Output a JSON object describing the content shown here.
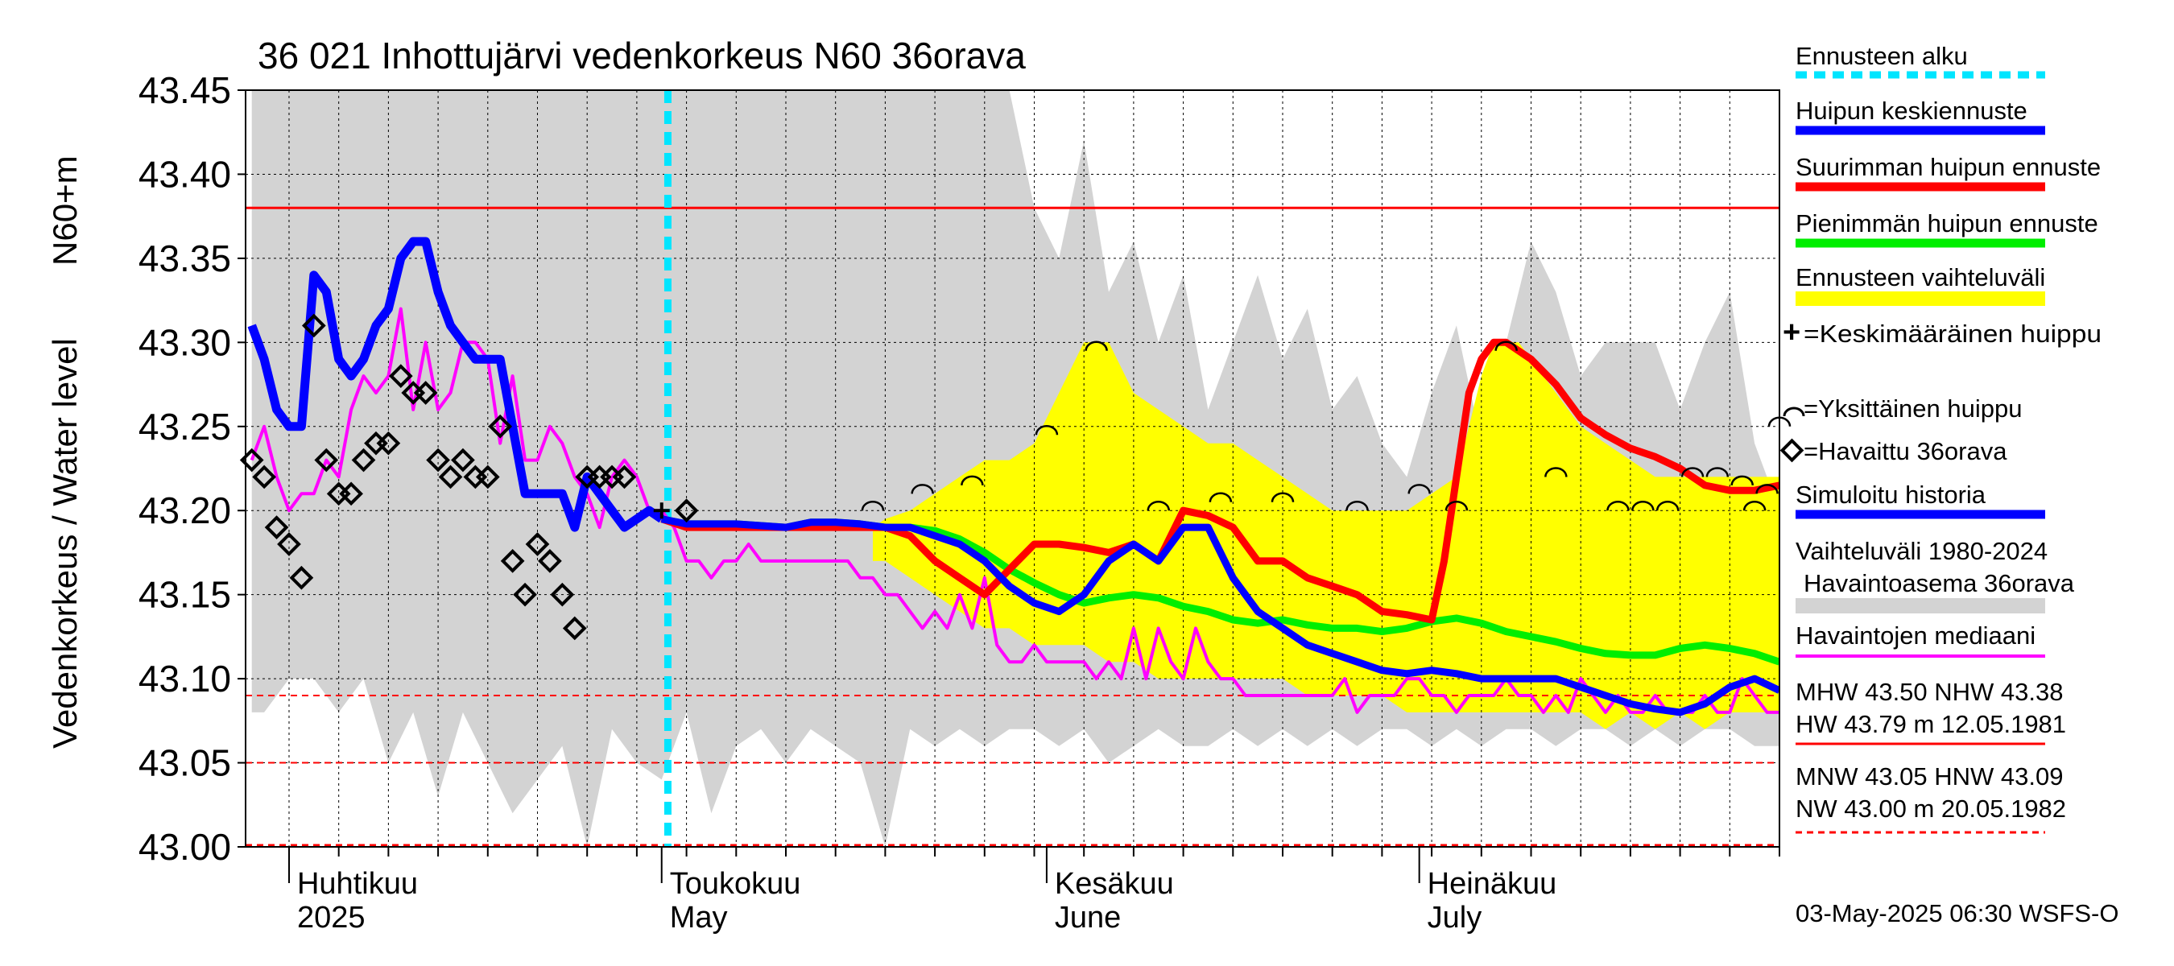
{
  "chart_data": {
    "type": "line",
    "title": "36 021 Inhottujärvi vedenkorkeus N60 36orava",
    "ylabel_top": "N60+m",
    "ylabel": "Vedenkorkeus / Water level",
    "ylim": [
      43.0,
      43.45
    ],
    "yticks": [
      "43.45",
      "43.40",
      "43.35",
      "43.30",
      "43.25",
      "43.20",
      "43.15",
      "43.10",
      "43.05",
      "43.00"
    ],
    "xlim": [
      -3.5,
      120
    ],
    "x_unit": "days from 1 April 2025",
    "month_labels": [
      {
        "fi": "Huhtikuu",
        "en": "2025",
        "day": 0
      },
      {
        "fi": "Toukokuu",
        "en": "May",
        "day": 30
      },
      {
        "fi": "Kesäkuu",
        "en": "June",
        "day": 61
      },
      {
        "fi": "Heinäkuu",
        "en": "July",
        "day": 91
      }
    ],
    "forecast_start_day": 30.5,
    "reference_lines": {
      "NHW": 43.38,
      "HNW": 43.09,
      "MNW": 43.05,
      "NW": 43.0
    },
    "legend": {
      "forecast_start": "Ennusteen alku",
      "peak_mean": "Huipun keskiennuste",
      "peak_max": "Suurimman huipun ennuste",
      "peak_min": "Pienimmän huipun ennuste",
      "forecast_range": "Ennusteen vaihteluväli",
      "mean_peak": "=Keskimääräinen huippu",
      "single_peak": "=Yksittäinen huippu",
      "observed": "=Havaittu 36orava",
      "simulated": "Simuloitu historia",
      "range_label_1": "Vaihteluväli 1980-2024",
      "range_label_2": "Havaintoasema 36orava",
      "median": "Havaintojen mediaani",
      "stats_1a": "MHW  43.50 NHW  43.38",
      "stats_1b": "HW  43.79 m 12.05.1981",
      "stats_2a": "MNW  43.05 HNW  43.09",
      "stats_2b": "NW  43.00 m 20.05.1982"
    },
    "footer": "03-May-2025 06:30 WSFS-O",
    "colors": {
      "history_range": "#d3d3d3",
      "forecast_range": "#ffff00",
      "peak_mean": "#0000ff",
      "peak_max": "#ff0000",
      "peak_min": "#00ee00",
      "median": "#ff00ff",
      "forecast_start": "#00e5ff",
      "reference": "#ff0000"
    },
    "series": {
      "history_range": {
        "x": [
          -3,
          -2,
          -1,
          0,
          2,
          4,
          6,
          8,
          10,
          12,
          14,
          16,
          18,
          20,
          22,
          24,
          26,
          28,
          30,
          32,
          34,
          36,
          38,
          40,
          42,
          44,
          46,
          48,
          50,
          52,
          54,
          56,
          58,
          60,
          62,
          64,
          66,
          68,
          70,
          72,
          74,
          76,
          78,
          80,
          82,
          84,
          86,
          88,
          90,
          92,
          94,
          96,
          98,
          100,
          102,
          104,
          106,
          108,
          110,
          112,
          114,
          116,
          118,
          120
        ],
        "high": [
          43.45,
          43.45,
          43.45,
          43.45,
          43.45,
          43.45,
          43.45,
          43.45,
          43.45,
          43.45,
          43.45,
          43.45,
          43.45,
          43.45,
          43.45,
          43.45,
          43.45,
          43.45,
          43.45,
          43.45,
          43.45,
          43.45,
          43.45,
          43.45,
          43.45,
          43.45,
          43.45,
          43.45,
          43.45,
          43.45,
          43.45,
          43.45,
          43.45,
          43.38,
          43.35,
          43.42,
          43.33,
          43.36,
          43.3,
          43.34,
          43.26,
          43.3,
          43.34,
          43.29,
          43.32,
          43.26,
          43.28,
          43.24,
          43.22,
          43.27,
          43.31,
          43.24,
          43.3,
          43.36,
          43.33,
          43.28,
          43.3,
          43.3,
          43.3,
          43.26,
          43.3,
          43.33,
          43.24,
          43.2
        ],
        "low": [
          43.08,
          43.08,
          43.09,
          43.1,
          43.1,
          43.08,
          43.1,
          43.05,
          43.08,
          43.03,
          43.08,
          43.05,
          43.02,
          43.04,
          43.06,
          43.0,
          43.07,
          43.05,
          43.04,
          43.08,
          43.02,
          43.06,
          43.07,
          43.05,
          43.07,
          43.06,
          43.05,
          43.0,
          43.07,
          43.06,
          43.07,
          43.06,
          43.07,
          43.07,
          43.06,
          43.07,
          43.05,
          43.06,
          43.07,
          43.06,
          43.06,
          43.07,
          43.06,
          43.07,
          43.06,
          43.07,
          43.06,
          43.07,
          43.07,
          43.06,
          43.07,
          43.06,
          43.07,
          43.07,
          43.06,
          43.07,
          43.07,
          43.06,
          43.07,
          43.06,
          43.07,
          43.07,
          43.06,
          43.06
        ]
      },
      "forecast_range": {
        "x": [
          47,
          48,
          50,
          52,
          54,
          56,
          58,
          60,
          62,
          64,
          66,
          68,
          70,
          72,
          74,
          76,
          78,
          80,
          82,
          84,
          86,
          88,
          90,
          92,
          94,
          95,
          96,
          97,
          98,
          99,
          100,
          102,
          104,
          106,
          108,
          110,
          112,
          114,
          116,
          118,
          120
        ],
        "high": [
          43.19,
          43.195,
          43.2,
          43.21,
          43.22,
          43.23,
          43.23,
          43.24,
          43.27,
          43.3,
          43.3,
          43.27,
          43.26,
          43.25,
          43.24,
          43.24,
          43.23,
          43.22,
          43.21,
          43.2,
          43.2,
          43.2,
          43.2,
          43.21,
          43.22,
          43.25,
          43.28,
          43.3,
          43.3,
          43.3,
          43.29,
          43.27,
          43.25,
          43.24,
          43.23,
          43.22,
          43.22,
          43.22,
          43.22,
          43.22,
          43.22
        ],
        "low": [
          43.17,
          43.17,
          43.16,
          43.15,
          43.14,
          43.13,
          43.13,
          43.12,
          43.12,
          43.12,
          43.11,
          43.11,
          43.1,
          43.1,
          43.1,
          43.1,
          43.1,
          43.1,
          43.09,
          43.09,
          43.09,
          43.09,
          43.08,
          43.08,
          43.08,
          43.08,
          43.08,
          43.08,
          43.08,
          43.08,
          43.08,
          43.08,
          43.08,
          43.07,
          43.08,
          43.07,
          43.08,
          43.07,
          43.08,
          43.08,
          43.08
        ]
      },
      "simulated": {
        "x": [
          -3,
          -2,
          -1,
          0,
          1,
          2,
          3,
          4,
          5,
          6,
          7,
          8,
          9,
          10,
          11,
          12,
          13,
          14,
          15,
          16,
          17,
          18,
          19,
          20,
          21,
          22,
          23,
          24,
          25,
          26,
          27,
          28,
          29,
          30
        ],
        "values": [
          43.31,
          43.29,
          43.26,
          43.25,
          43.25,
          43.34,
          43.33,
          43.29,
          43.28,
          43.29,
          43.31,
          43.32,
          43.35,
          43.36,
          43.36,
          43.33,
          43.31,
          43.3,
          43.29,
          43.29,
          43.29,
          43.25,
          43.21,
          43.21,
          43.21,
          43.21,
          43.19,
          43.22,
          43.21,
          43.2,
          43.19,
          43.195,
          43.2,
          43.195
        ]
      },
      "peak_mean": {
        "x": [
          30,
          32,
          34,
          36,
          38,
          40,
          42,
          44,
          46,
          48,
          50,
          52,
          54,
          56,
          58,
          60,
          62,
          64,
          66,
          68,
          70,
          72,
          74,
          76,
          78,
          80,
          82,
          84,
          86,
          88,
          90,
          92,
          94,
          96,
          98,
          100,
          102,
          104,
          106,
          108,
          110,
          112,
          114,
          116,
          118,
          120
        ],
        "values": [
          43.195,
          43.192,
          43.192,
          43.192,
          43.191,
          43.19,
          43.193,
          43.193,
          43.192,
          43.19,
          43.19,
          43.185,
          43.18,
          43.17,
          43.155,
          43.145,
          43.14,
          43.15,
          43.17,
          43.18,
          43.17,
          43.19,
          43.19,
          43.16,
          43.14,
          43.13,
          43.12,
          43.115,
          43.11,
          43.105,
          43.103,
          43.105,
          43.103,
          43.1,
          43.1,
          43.1,
          43.1,
          43.095,
          43.09,
          43.085,
          43.082,
          43.08,
          43.085,
          43.095,
          43.1,
          43.093
        ]
      },
      "peak_max": {
        "x": [
          30,
          32,
          34,
          36,
          38,
          40,
          42,
          44,
          46,
          48,
          50,
          52,
          54,
          56,
          58,
          60,
          62,
          64,
          66,
          68,
          70,
          72,
          74,
          76,
          78,
          80,
          82,
          84,
          86,
          88,
          90,
          92,
          93,
          94,
          95,
          96,
          97,
          98,
          99,
          100,
          102,
          104,
          106,
          108,
          110,
          112,
          114,
          116,
          118,
          120
        ],
        "values": [
          43.195,
          43.19,
          43.19,
          43.19,
          43.19,
          43.19,
          43.19,
          43.19,
          43.19,
          43.19,
          43.185,
          43.17,
          43.16,
          43.15,
          43.165,
          43.18,
          43.18,
          43.178,
          43.175,
          43.18,
          43.17,
          43.2,
          43.197,
          43.19,
          43.17,
          43.17,
          43.16,
          43.155,
          43.15,
          43.14,
          43.138,
          43.135,
          43.17,
          43.22,
          43.27,
          43.29,
          43.3,
          43.3,
          43.295,
          43.29,
          43.275,
          43.255,
          43.245,
          43.237,
          43.232,
          43.225,
          43.215,
          43.212,
          43.212,
          43.215
        ]
      },
      "peak_min": {
        "x": [
          30,
          32,
          34,
          36,
          38,
          40,
          42,
          44,
          46,
          48,
          50,
          52,
          54,
          56,
          58,
          60,
          62,
          64,
          66,
          68,
          70,
          72,
          74,
          76,
          78,
          80,
          82,
          84,
          86,
          88,
          90,
          92,
          94,
          96,
          98,
          100,
          102,
          104,
          106,
          108,
          110,
          112,
          114,
          116,
          118,
          120
        ],
        "values": [
          43.195,
          43.192,
          43.192,
          43.192,
          43.191,
          43.19,
          43.193,
          43.193,
          43.192,
          43.19,
          43.19,
          43.188,
          43.183,
          43.175,
          43.165,
          43.157,
          43.15,
          43.145,
          43.148,
          43.15,
          43.148,
          43.143,
          43.14,
          43.135,
          43.133,
          43.135,
          43.132,
          43.13,
          43.13,
          43.128,
          43.13,
          43.134,
          43.136,
          43.133,
          43.128,
          43.125,
          43.122,
          43.118,
          43.115,
          43.114,
          43.114,
          43.118,
          43.12,
          43.118,
          43.115,
          43.11
        ]
      },
      "median": {
        "x": [
          -3,
          -2,
          -1,
          0,
          1,
          2,
          3,
          4,
          5,
          6,
          7,
          8,
          9,
          10,
          11,
          12,
          13,
          14,
          15,
          16,
          17,
          18,
          19,
          20,
          21,
          22,
          23,
          24,
          25,
          26,
          27,
          28,
          29,
          30,
          31,
          32,
          33,
          34,
          35,
          36,
          37,
          38,
          39,
          40,
          41,
          42,
          43,
          44,
          45,
          46,
          47,
          48,
          49,
          50,
          51,
          52,
          53,
          54,
          55,
          56,
          57,
          58,
          59,
          60,
          61,
          62,
          63,
          64,
          65,
          66,
          67,
          68,
          69,
          70,
          71,
          72,
          73,
          74,
          75,
          76,
          77,
          78,
          79,
          80,
          81,
          82,
          83,
          84,
          85,
          86,
          87,
          88,
          89,
          90,
          91,
          92,
          93,
          94,
          95,
          96,
          97,
          98,
          99,
          100,
          101,
          102,
          103,
          104,
          105,
          106,
          107,
          108,
          109,
          110,
          111,
          112,
          113,
          114,
          115,
          116,
          117,
          118,
          119,
          120
        ],
        "values": [
          43.23,
          43.25,
          43.22,
          43.2,
          43.21,
          43.21,
          43.23,
          43.22,
          43.26,
          43.28,
          43.27,
          43.28,
          43.32,
          43.26,
          43.3,
          43.26,
          43.27,
          43.3,
          43.3,
          43.29,
          43.24,
          43.28,
          43.23,
          43.23,
          43.25,
          43.24,
          43.22,
          43.21,
          43.19,
          43.22,
          43.23,
          43.22,
          43.2,
          43.2,
          43.19,
          43.17,
          43.17,
          43.16,
          43.17,
          43.17,
          43.18,
          43.17,
          43.17,
          43.17,
          43.17,
          43.17,
          43.17,
          43.17,
          43.17,
          43.16,
          43.16,
          43.15,
          43.15,
          43.14,
          43.13,
          43.14,
          43.13,
          43.15,
          43.13,
          43.16,
          43.12,
          43.11,
          43.11,
          43.12,
          43.11,
          43.11,
          43.11,
          43.11,
          43.1,
          43.11,
          43.1,
          43.13,
          43.1,
          43.13,
          43.11,
          43.1,
          43.13,
          43.11,
          43.1,
          43.1,
          43.09,
          43.09,
          43.09,
          43.09,
          43.09,
          43.09,
          43.09,
          43.09,
          43.1,
          43.08,
          43.09,
          43.09,
          43.09,
          43.1,
          43.1,
          43.09,
          43.09,
          43.08,
          43.09,
          43.09,
          43.09,
          43.1,
          43.09,
          43.09,
          43.08,
          43.09,
          43.08,
          43.1,
          43.09,
          43.08,
          43.09,
          43.08,
          43.08,
          43.09,
          43.08,
          43.08,
          43.08,
          43.09,
          43.08,
          43.08,
          43.1,
          43.09,
          43.08,
          43.08
        ]
      },
      "observed": {
        "x": [
          -3,
          -2,
          -1,
          0,
          1,
          2,
          3,
          4,
          5,
          6,
          7,
          8,
          9,
          10,
          11,
          12,
          13,
          14,
          15,
          16,
          17,
          18,
          19,
          20,
          21,
          22,
          23,
          24,
          25,
          26,
          27,
          32
        ],
        "values": [
          43.23,
          43.22,
          43.19,
          43.18,
          43.16,
          43.31,
          43.23,
          43.21,
          43.21,
          43.23,
          43.24,
          43.24,
          43.28,
          43.27,
          43.27,
          43.23,
          43.22,
          43.23,
          43.22,
          43.22,
          43.25,
          43.17,
          43.15,
          43.18,
          43.17,
          43.15,
          43.13,
          43.22,
          43.22,
          43.22,
          43.22,
          43.2
        ]
      },
      "mean_peak": {
        "x": [
          30
        ],
        "values": [
          43.2
        ]
      },
      "single_peaks": {
        "x": [
          47,
          51,
          55,
          61,
          65,
          70,
          75,
          80,
          86,
          91,
          94,
          98,
          102,
          107,
          109,
          111,
          113,
          115,
          117,
          118,
          119,
          120
        ],
        "values": [
          43.2,
          43.21,
          43.215,
          43.245,
          43.295,
          43.2,
          43.205,
          43.205,
          43.2,
          43.21,
          43.2,
          43.295,
          43.22,
          43.2,
          43.2,
          43.2,
          43.22,
          43.22,
          43.215,
          43.2,
          43.21,
          43.25
        ]
      }
    }
  }
}
